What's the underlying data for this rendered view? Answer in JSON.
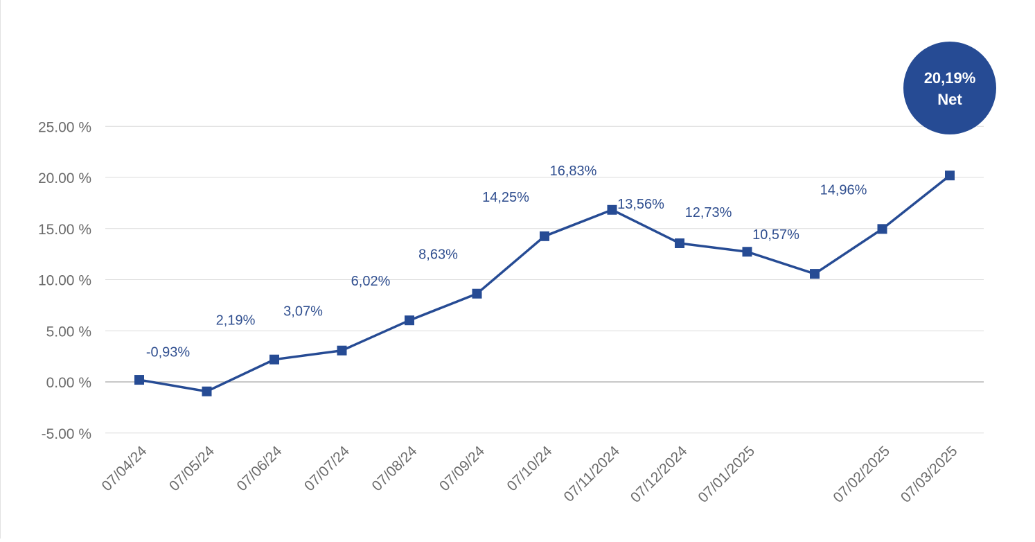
{
  "chart_data": {
    "type": "line",
    "x": [
      "07/04/24",
      "07/05/24",
      "07/06/24",
      "07/07/24",
      "07/08/24",
      "07/09/24",
      "07/10/24",
      "07/11/2024",
      "07/12/2024",
      "07/01/2025",
      "",
      "07/02/2025",
      "07/03/2025"
    ],
    "series": [
      {
        "values": [
          0.2,
          -0.93,
          2.19,
          3.07,
          6.02,
          8.63,
          14.25,
          16.83,
          13.56,
          12.73,
          10.57,
          14.96,
          20.19
        ],
        "data_labels": [
          "",
          "-0,93%",
          "2,19%",
          "3,07%",
          "6,02%",
          "8,63%",
          "14,25%",
          "16,83%",
          "13,56%",
          "12,73%",
          "10,57%",
          "14,96%",
          ""
        ]
      }
    ],
    "ylim": [
      -5,
      25
    ],
    "yticks": [
      -5,
      0,
      5,
      10,
      15,
      20,
      25
    ],
    "ytick_labels": [
      "-5.00 %",
      "0.00 %",
      "5.00 %",
      "10.00 %",
      "15.00 %",
      "20.00 %",
      "25.00 %"
    ],
    "grid": true,
    "callout": {
      "line1": "20,19%",
      "line2": "Net"
    }
  },
  "colors": {
    "series": "#264b94",
    "label": "#2f4e8f",
    "grid": "#dcdcdc",
    "zero_line": "#a8a8a8",
    "tick_text": "#6b6b6b"
  }
}
